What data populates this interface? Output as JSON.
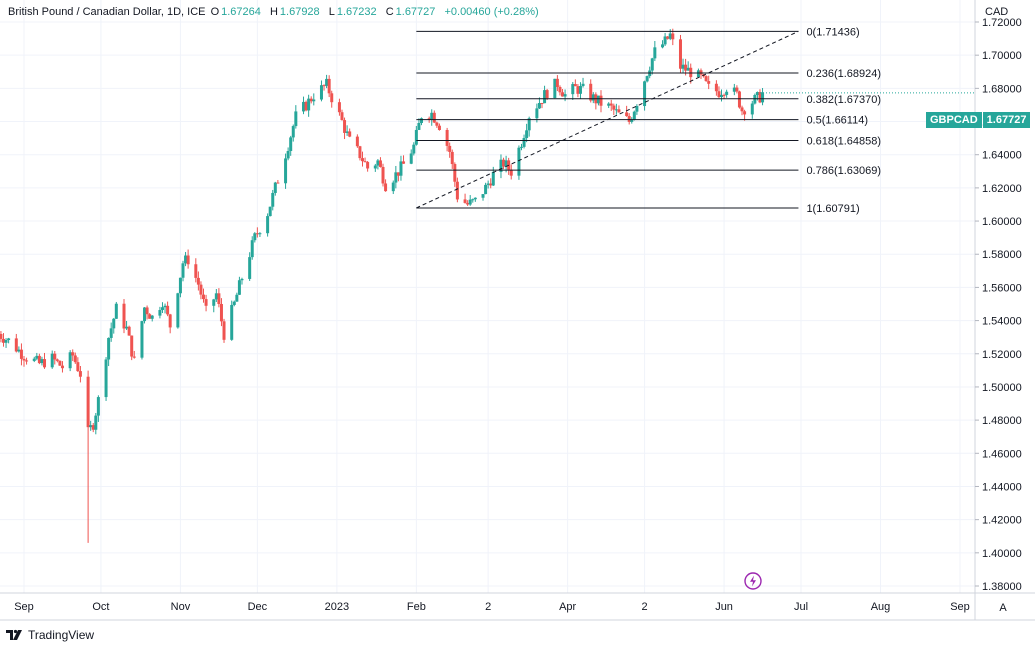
{
  "header": {
    "title": "British Pound / Canadian Dollar, 1D, ICE",
    "open_label": "O",
    "open": "1.67264",
    "high_label": "H",
    "high": "1.67928",
    "low_label": "L",
    "low": "1.67232",
    "close_label": "C",
    "close": "1.67727",
    "change": "+0.00460 (+0.28%)"
  },
  "currency": "CAD",
  "last_price": {
    "symbol": "GBPCAD",
    "value": "1.67727"
  },
  "branding": {
    "name": "TradingView"
  },
  "auto_button": "A",
  "icons": {
    "flash": "lightning-icon",
    "logo": "tradingview-logo-icon"
  },
  "colors": {
    "up": "#26a69a",
    "down": "#ef5350",
    "fib": "#131722",
    "badge": "#26a69a"
  },
  "chart_data": {
    "type": "candlestick",
    "symbol": "GBPCAD",
    "interval": "1D",
    "ylim": [
      1.375,
      1.725
    ],
    "y_ticks": [
      "1.72000",
      "1.70000",
      "1.68000",
      "1.66000",
      "1.64000",
      "1.62000",
      "1.60000",
      "1.58000",
      "1.56000",
      "1.54000",
      "1.52000",
      "1.50000",
      "1.48000",
      "1.46000",
      "1.44000",
      "1.42000",
      "1.40000",
      "1.38000"
    ],
    "x_ticks": [
      {
        "label": "Sep",
        "date": "2022-09-01"
      },
      {
        "label": "Oct",
        "date": "2022-10-01"
      },
      {
        "label": "Nov",
        "date": "2022-11-01"
      },
      {
        "label": "Dec",
        "date": "2022-12-01"
      },
      {
        "label": "2023",
        "date": "2023-01-01"
      },
      {
        "label": "Feb",
        "date": "2023-02-01"
      },
      {
        "label": "2",
        "date": "2023-03-01"
      },
      {
        "label": "Apr",
        "date": "2023-04-01"
      },
      {
        "label": "2",
        "date": "2023-05-01"
      },
      {
        "label": "Jun",
        "date": "2023-06-01"
      },
      {
        "label": "Jul",
        "date": "2023-07-01"
      },
      {
        "label": "Aug",
        "date": "2023-08-01"
      },
      {
        "label": "Sep",
        "date": "2023-09-01"
      }
    ],
    "price_path": [
      [
        "2022-08-22",
        1.532
      ],
      [
        "2022-08-26",
        1.528
      ],
      [
        "2022-09-01",
        1.519
      ],
      [
        "2022-09-07",
        1.514
      ],
      [
        "2022-09-12",
        1.517
      ],
      [
        "2022-09-16",
        1.512
      ],
      [
        "2022-09-20",
        1.519
      ],
      [
        "2022-09-23",
        1.508
      ],
      [
        "2022-09-26",
        1.472
      ],
      [
        "2022-09-28",
        1.478
      ],
      [
        "2022-09-30",
        1.492
      ],
      [
        "2022-10-04",
        1.53
      ],
      [
        "2022-10-07",
        1.547
      ],
      [
        "2022-10-11",
        1.535
      ],
      [
        "2022-10-14",
        1.515
      ],
      [
        "2022-10-18",
        1.548
      ],
      [
        "2022-10-21",
        1.542
      ],
      [
        "2022-10-25",
        1.552
      ],
      [
        "2022-10-28",
        1.537
      ],
      [
        "2022-11-02",
        1.575
      ],
      [
        "2022-11-04",
        1.577
      ],
      [
        "2022-11-08",
        1.562
      ],
      [
        "2022-11-11",
        1.545
      ],
      [
        "2022-11-15",
        1.556
      ],
      [
        "2022-11-18",
        1.532
      ],
      [
        "2022-11-22",
        1.55
      ],
      [
        "2022-11-25",
        1.566
      ],
      [
        "2022-11-30",
        1.59
      ],
      [
        "2022-12-05",
        1.605
      ],
      [
        "2022-12-09",
        1.625
      ],
      [
        "2022-12-13",
        1.646
      ],
      [
        "2022-12-16",
        1.663
      ],
      [
        "2022-12-20",
        1.67
      ],
      [
        "2022-12-23",
        1.676
      ],
      [
        "2022-12-28",
        1.682
      ],
      [
        "2023-01-03",
        1.66
      ],
      [
        "2023-01-06",
        1.648
      ],
      [
        "2023-01-10",
        1.64
      ],
      [
        "2023-01-13",
        1.632
      ],
      [
        "2023-01-17",
        1.636
      ],
      [
        "2023-01-20",
        1.622
      ],
      [
        "2023-01-24",
        1.628
      ],
      [
        "2023-01-27",
        1.634
      ],
      [
        "2023-01-31",
        1.645
      ],
      [
        "2023-02-03",
        1.664
      ],
      [
        "2023-02-07",
        1.665
      ],
      [
        "2023-02-10",
        1.658
      ],
      [
        "2023-02-14",
        1.642
      ],
      [
        "2023-02-17",
        1.615
      ],
      [
        "2023-02-21",
        1.61
      ],
      [
        "2023-02-24",
        1.612
      ],
      [
        "2023-02-28",
        1.62
      ],
      [
        "2023-03-03",
        1.628
      ],
      [
        "2023-03-07",
        1.635
      ],
      [
        "2023-03-10",
        1.63
      ],
      [
        "2023-03-14",
        1.648
      ],
      [
        "2023-03-17",
        1.664
      ],
      [
        "2023-03-21",
        1.672
      ],
      [
        "2023-03-24",
        1.678
      ],
      [
        "2023-03-28",
        1.683
      ],
      [
        "2023-03-31",
        1.676
      ],
      [
        "2023-04-04",
        1.68
      ],
      [
        "2023-04-07",
        1.679
      ],
      [
        "2023-04-11",
        1.674
      ],
      [
        "2023-04-14",
        1.671
      ],
      [
        "2023-04-18",
        1.668
      ],
      [
        "2023-04-21",
        1.664
      ],
      [
        "2023-04-25",
        1.66
      ],
      [
        "2023-04-28",
        1.672
      ],
      [
        "2023-05-02",
        1.69
      ],
      [
        "2023-05-05",
        1.702
      ],
      [
        "2023-05-09",
        1.708
      ],
      [
        "2023-05-11",
        1.712
      ],
      [
        "2023-05-15",
        1.693
      ],
      [
        "2023-05-19",
        1.69
      ],
      [
        "2023-05-23",
        1.686
      ],
      [
        "2023-05-26",
        1.68
      ],
      [
        "2023-05-30",
        1.678
      ],
      [
        "2023-06-02",
        1.681
      ],
      [
        "2023-06-06",
        1.676
      ],
      [
        "2023-06-08",
        1.667
      ],
      [
        "2023-06-12",
        1.672
      ],
      [
        "2023-06-15",
        1.675
      ],
      [
        "2023-06-16",
        1.677
      ]
    ],
    "fibonacci": {
      "from_date": "2023-02-01",
      "to_date": "2023-06-30",
      "levels": [
        {
          "label": "0(1.71436)",
          "price": 1.71436
        },
        {
          "label": "0.236(1.68924)",
          "price": 1.68924
        },
        {
          "label": "0.382(1.67370)",
          "price": 1.6737
        },
        {
          "label": "0.5(1.66114)",
          "price": 1.66114
        },
        {
          "label": "0.618(1.64858)",
          "price": 1.64858
        },
        {
          "label": "0.786(1.63069)",
          "price": 1.63069
        },
        {
          "label": "1(1.60791)",
          "price": 1.60791
        }
      ],
      "trendline": {
        "from": [
          "2023-02-01",
          1.60791
        ],
        "to": [
          "2023-06-30",
          1.71436
        ]
      }
    }
  }
}
